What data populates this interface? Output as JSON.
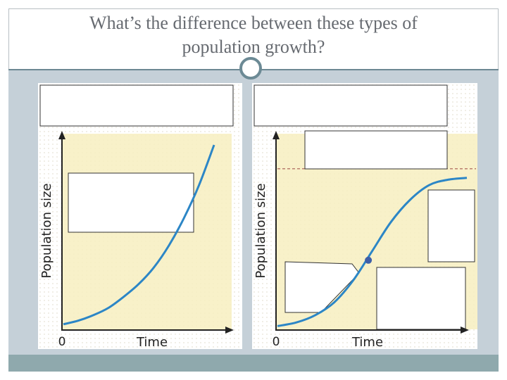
{
  "slide": {
    "title_line1": "What’s the difference between these types of",
    "title_line2": "population growth?"
  },
  "colors": {
    "plot_background": "#f7efbf",
    "curve": "#2c86c6",
    "carrying_capacity_line": "#a65a52",
    "point": "#3f5fa8",
    "frame": "#c5d0d8",
    "bottom_bar": "#8fa9ad"
  },
  "chart_data": [
    {
      "type": "line",
      "title": "",
      "xlabel": "Time",
      "ylabel": "Population size",
      "x_tick_labels": [
        "0"
      ],
      "series": [
        {
          "x": [
            0,
            0.1,
            0.2,
            0.3,
            0.4,
            0.5,
            0.6,
            0.7,
            0.8,
            0.9,
            1.0
          ],
          "y": [
            0.02,
            0.04,
            0.07,
            0.11,
            0.17,
            0.24,
            0.33,
            0.45,
            0.6,
            0.78,
            1.0
          ]
        }
      ]
    },
    {
      "type": "line",
      "title": "",
      "xlabel": "Time",
      "ylabel": "Population size",
      "x_tick_labels": [
        "0"
      ],
      "carrying_capacity": 0.87,
      "series": [
        {
          "x": [
            0,
            0.1,
            0.2,
            0.3,
            0.4,
            0.5,
            0.6,
            0.7,
            0.8,
            0.9,
            1.0
          ],
          "y": [
            0.01,
            0.03,
            0.07,
            0.14,
            0.26,
            0.42,
            0.58,
            0.7,
            0.78,
            0.81,
            0.82
          ]
        }
      ],
      "inflection_point": {
        "x": 0.48,
        "y": 0.37
      }
    }
  ]
}
